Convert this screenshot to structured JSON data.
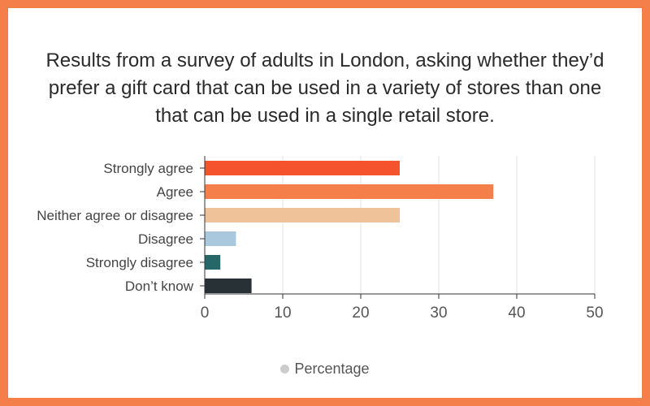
{
  "chart_data": {
    "type": "bar",
    "orientation": "horizontal",
    "title": "Results from a survey of adults in London, asking whether they’d prefer a gift card that can be used in a variety of stores than one that can be used in a single retail store.",
    "categories": [
      "Strongly agree",
      "Agree",
      "Neither agree or disagree",
      "Disagree",
      "Strongly disagree",
      "Don’t know"
    ],
    "series": [
      {
        "name": "Percentage",
        "values": [
          25,
          37,
          25,
          4,
          2,
          6
        ],
        "colors": [
          "#f5522e",
          "#f47f4a",
          "#efc29a",
          "#a9c8dd",
          "#26686a",
          "#283236"
        ]
      }
    ],
    "xlim": [
      0,
      50
    ],
    "xticks": [
      "0",
      "10",
      "20",
      "30",
      "40",
      "50"
    ],
    "grid": true,
    "legend_position": "bottom",
    "legend_color": "#cccccc"
  }
}
